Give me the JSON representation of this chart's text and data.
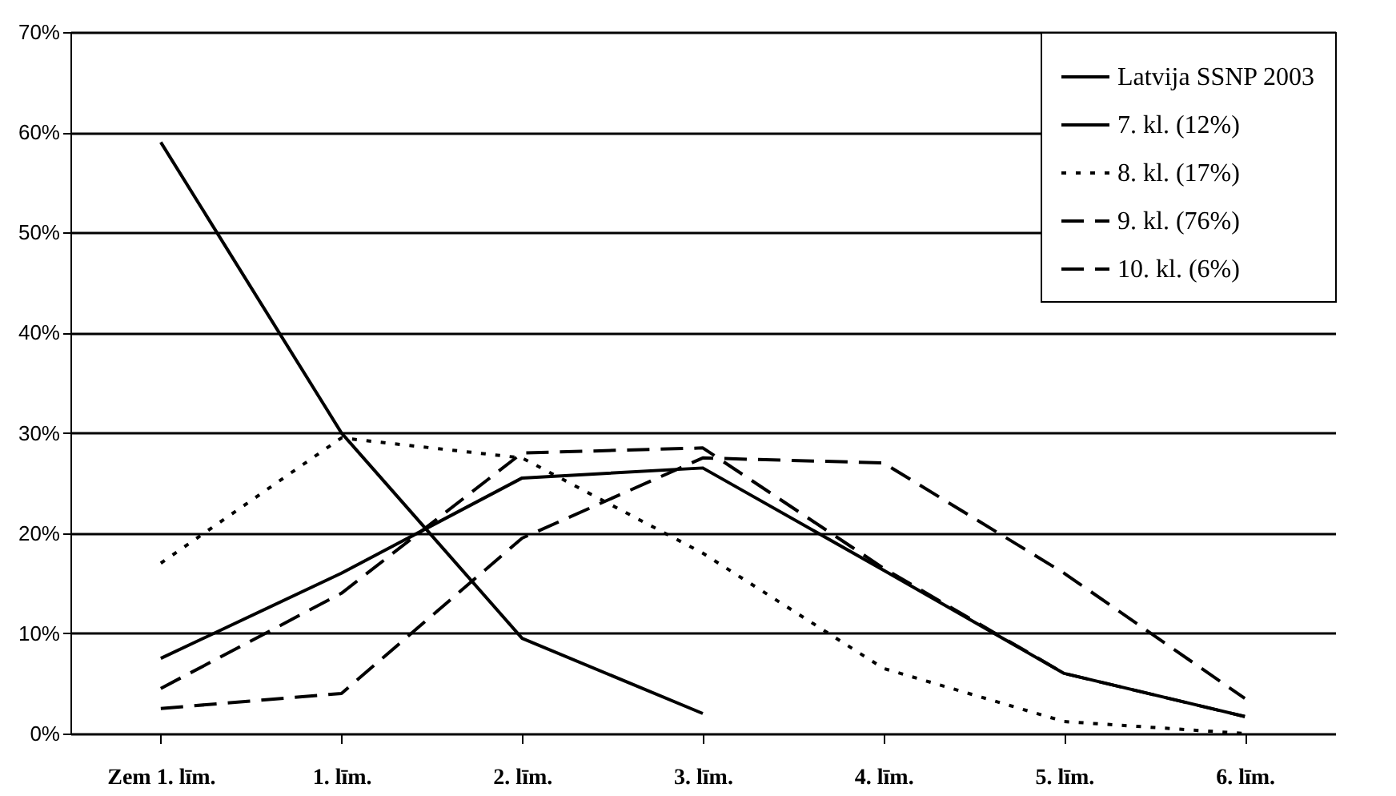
{
  "chart_data": {
    "type": "line",
    "categories": [
      "Zem 1. līm.",
      "1. līm.",
      "2. līm.",
      "3. līm.",
      "4. līm.",
      "5. līm.",
      "6. līm."
    ],
    "series": [
      {
        "name": "Latvija SSNP 2003",
        "color": "#000000",
        "line_style": "solid",
        "values": [
          7.5,
          16,
          25.5,
          26.5,
          16.3,
          6,
          1.7
        ]
      },
      {
        "name": "7. kl. (12%)",
        "color": "#000000",
        "line_style": "solid",
        "values": [
          59,
          30,
          9.5,
          2,
          null,
          null,
          null
        ]
      },
      {
        "name": "8. kl. (17%)",
        "color": "#000000",
        "line_style": "dotted",
        "values": [
          17,
          29.5,
          27.5,
          18,
          6.5,
          1.2,
          0
        ]
      },
      {
        "name": "9. kl. (76%)",
        "color": "#000000",
        "line_style": "dashed",
        "values": [
          4.5,
          14,
          28,
          28.5,
          16.5,
          6,
          1.7
        ]
      },
      {
        "name": "10. kl. (6%)",
        "color": "#000000",
        "line_style": "dashed",
        "values": [
          2.5,
          4,
          19.5,
          27.5,
          27,
          16,
          3.5
        ]
      }
    ],
    "ylim": [
      0,
      70
    ],
    "yticks": [
      {
        "value": 0,
        "label": "0%"
      },
      {
        "value": 10,
        "label": "10%"
      },
      {
        "value": 20,
        "label": "20%"
      },
      {
        "value": 30,
        "label": "30%"
      },
      {
        "value": 40,
        "label": "40%"
      },
      {
        "value": 50,
        "label": "50%"
      },
      {
        "value": 60,
        "label": "60%"
      },
      {
        "value": 70,
        "label": "70%"
      }
    ],
    "grid": "y",
    "legend": "top right"
  }
}
